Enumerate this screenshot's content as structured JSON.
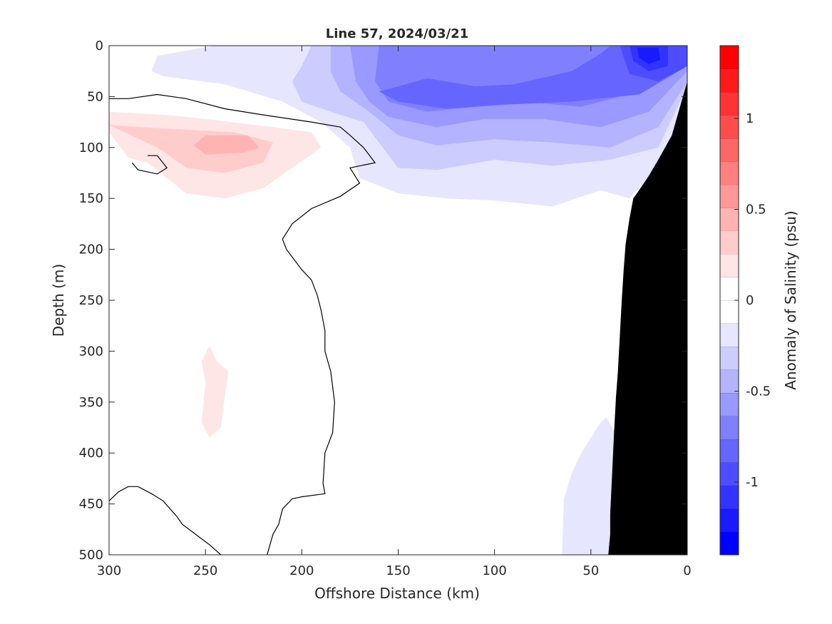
{
  "chart_data": {
    "type": "heatmap",
    "subtype": "filled-contour-section",
    "title": "Line 57, 2024/03/21",
    "xlabel": "Offshore Distance (km)",
    "ylabel": "Depth (m)",
    "colorbar_label": "Anomaly of Salinity (psu)",
    "x_reversed": true,
    "y_reversed": true,
    "xlim": [
      300,
      0
    ],
    "ylim": [
      500,
      0
    ],
    "xticks": [
      300,
      250,
      200,
      150,
      100,
      50,
      0
    ],
    "yticks": [
      0,
      50,
      100,
      150,
      200,
      250,
      300,
      350,
      400,
      450,
      500
    ],
    "colorbar": {
      "min": -1.4,
      "max": 1.4,
      "step": 0.1,
      "ticks": [
        1,
        0.5,
        0,
        -0.5,
        -1
      ],
      "colors": [
        "#0000ff",
        "#1a1aff",
        "#3333ff",
        "#4d4dff",
        "#6666ff",
        "#8080ff",
        "#9999ff",
        "#b3b3ff",
        "#ccccff",
        "#e6e6ff",
        "#ffffff",
        "#ffffff",
        "#ffe6e6",
        "#ffcccc",
        "#ffb3b3",
        "#ff9999",
        "#ff8080",
        "#ff6666",
        "#ff4d4d",
        "#ff3333",
        "#ff1a1a",
        "#ff0000"
      ]
    },
    "contour_levels": [
      0
    ],
    "regions": [
      {
        "name": "surface fresh anomaly -0.1",
        "level": -0.1,
        "color": "#e6e6ff",
        "points": [
          [
            245,
            0
          ],
          [
            0,
            0
          ],
          [
            0,
            40
          ],
          [
            10,
            110
          ],
          [
            30,
            150
          ],
          [
            45,
            142
          ],
          [
            70,
            158
          ],
          [
            100,
            152
          ],
          [
            125,
            150
          ],
          [
            150,
            145
          ],
          [
            170,
            130
          ],
          [
            175,
            100
          ],
          [
            190,
            75
          ],
          [
            210,
            55
          ],
          [
            240,
            38
          ],
          [
            272,
            30
          ],
          [
            278,
            25
          ],
          [
            275,
            10
          ]
        ]
      },
      {
        "name": "fresh anomaly -0.2",
        "level": -0.2,
        "color": "#ccccff",
        "points": [
          [
            195,
            0
          ],
          [
            0,
            0
          ],
          [
            0,
            40
          ],
          [
            15,
            100
          ],
          [
            40,
            112
          ],
          [
            70,
            118
          ],
          [
            100,
            112
          ],
          [
            130,
            122
          ],
          [
            150,
            120
          ],
          [
            160,
            95
          ],
          [
            168,
            75
          ],
          [
            185,
            65
          ],
          [
            200,
            55
          ],
          [
            205,
            35
          ],
          [
            200,
            20
          ]
        ]
      },
      {
        "name": "fresh anomaly -0.3",
        "level": -0.3,
        "color": "#b3b3ff",
        "points": [
          [
            185,
            0
          ],
          [
            0,
            0
          ],
          [
            0,
            35
          ],
          [
            15,
            80
          ],
          [
            40,
            100
          ],
          [
            70,
            95
          ],
          [
            100,
            92
          ],
          [
            130,
            98
          ],
          [
            150,
            88
          ],
          [
            165,
            65
          ],
          [
            180,
            45
          ],
          [
            185,
            25
          ]
        ]
      },
      {
        "name": "fresh anomaly -0.4",
        "level": -0.4,
        "color": "#9999ff",
        "points": [
          [
            175,
            0
          ],
          [
            0,
            0
          ],
          [
            0,
            25
          ],
          [
            20,
            65
          ],
          [
            45,
            80
          ],
          [
            75,
            72
          ],
          [
            105,
            72
          ],
          [
            130,
            80
          ],
          [
            155,
            70
          ],
          [
            165,
            55
          ],
          [
            172,
            35
          ]
        ]
      },
      {
        "name": "fresh anomaly -0.5",
        "level": -0.5,
        "color": "#8080ff",
        "points": [
          [
            160,
            0
          ],
          [
            0,
            0
          ],
          [
            0,
            20
          ],
          [
            25,
            45
          ],
          [
            55,
            60
          ],
          [
            85,
            55
          ],
          [
            110,
            60
          ],
          [
            135,
            65
          ],
          [
            155,
            55
          ],
          [
            162,
            35
          ]
        ]
      },
      {
        "name": "fresh anomaly -0.6",
        "level": -0.6,
        "color": "#6666ff",
        "points": [
          [
            150,
            40
          ],
          [
            135,
            32
          ],
          [
            110,
            40
          ],
          [
            90,
            38
          ],
          [
            60,
            25
          ],
          [
            45,
            8
          ],
          [
            40,
            0
          ],
          [
            0,
            0
          ],
          [
            0,
            20
          ],
          [
            25,
            48
          ],
          [
            60,
            55
          ],
          [
            95,
            58
          ],
          [
            125,
            62
          ],
          [
            150,
            55
          ],
          [
            160,
            45
          ]
        ]
      },
      {
        "name": "fresh core -0.8",
        "level": -0.8,
        "color": "#4d4dff",
        "points": [
          [
            35,
            0
          ],
          [
            0,
            0
          ],
          [
            0,
            20
          ],
          [
            15,
            35
          ],
          [
            30,
            28
          ]
        ]
      },
      {
        "name": "fresh core -1.0",
        "level": -1.0,
        "color": "#3333ff",
        "points": [
          [
            30,
            0
          ],
          [
            10,
            0
          ],
          [
            10,
            20
          ],
          [
            20,
            25
          ],
          [
            28,
            15
          ]
        ]
      },
      {
        "name": "fresh core -1.2",
        "level": -1.2,
        "color": "#1a1aff",
        "points": [
          [
            26,
            2
          ],
          [
            15,
            2
          ],
          [
            14,
            14
          ],
          [
            20,
            18
          ],
          [
            25,
            12
          ]
        ]
      },
      {
        "name": "deep fresh anomaly -0.1",
        "level": -0.1,
        "color": "#e6e6ff",
        "points": [
          [
            65,
            500
          ],
          [
            64,
            445
          ],
          [
            60,
            420
          ],
          [
            55,
            400
          ],
          [
            45,
            370
          ],
          [
            42,
            365
          ],
          [
            38,
            378
          ],
          [
            35,
            400
          ],
          [
            33,
            500
          ]
        ]
      },
      {
        "name": "salty anomaly 0.1",
        "level": 0.1,
        "color": "#ffe6e6",
        "points": [
          [
            300,
            65
          ],
          [
            300,
            85
          ],
          [
            290,
            110
          ],
          [
            280,
            115
          ],
          [
            260,
            145
          ],
          [
            240,
            150
          ],
          [
            220,
            140
          ],
          [
            205,
            120
          ],
          [
            190,
            100
          ],
          [
            195,
            85
          ],
          [
            215,
            80
          ],
          [
            250,
            72
          ],
          [
            270,
            68
          ]
        ]
      },
      {
        "name": "salty anomaly 0.2",
        "level": 0.2,
        "color": "#ffcccc",
        "points": [
          [
            300,
            78
          ],
          [
            275,
            100
          ],
          [
            260,
            120
          ],
          [
            240,
            125
          ],
          [
            220,
            115
          ],
          [
            215,
            95
          ],
          [
            235,
            85
          ],
          [
            265,
            82
          ]
        ]
      },
      {
        "name": "salty core 0.3",
        "level": 0.3,
        "color": "#ffb3b3",
        "points": [
          [
            250,
            88
          ],
          [
            228,
            88
          ],
          [
            222,
            100
          ],
          [
            230,
            105
          ],
          [
            250,
            107
          ],
          [
            256,
            98
          ]
        ]
      },
      {
        "name": "deep salty anomaly 0.1",
        "level": 0.1,
        "color": "#ffe6e6",
        "points": [
          [
            248,
            295
          ],
          [
            244,
            310
          ],
          [
            238,
            320
          ],
          [
            240,
            345
          ],
          [
            242,
            375
          ],
          [
            248,
            385
          ],
          [
            252,
            370
          ],
          [
            250,
            330
          ],
          [
            252,
            310
          ]
        ]
      }
    ],
    "zero_contours": [
      [
        [
          300,
          52
        ],
        [
          290,
          52
        ],
        [
          275,
          48
        ],
        [
          260,
          52
        ],
        [
          240,
          62
        ],
        [
          220,
          68
        ],
        [
          195,
          75
        ],
        [
          180,
          80
        ],
        [
          175,
          88
        ],
        [
          168,
          100
        ],
        [
          162,
          115
        ],
        [
          175,
          120
        ],
        [
          170,
          135
        ],
        [
          180,
          148
        ],
        [
          195,
          160
        ],
        [
          205,
          175
        ],
        [
          210,
          190
        ],
        [
          208,
          200
        ],
        [
          200,
          220
        ],
        [
          195,
          230
        ],
        [
          192,
          245
        ],
        [
          190,
          260
        ],
        [
          188,
          280
        ],
        [
          188,
          300
        ],
        [
          185,
          320
        ],
        [
          183,
          350
        ],
        [
          184,
          380
        ],
        [
          188,
          400
        ],
        [
          189,
          430
        ],
        [
          188,
          440
        ],
        [
          200,
          443
        ],
        [
          205,
          445
        ],
        [
          210,
          455
        ],
        [
          212,
          470
        ],
        [
          215,
          480
        ],
        [
          218,
          500
        ]
      ],
      [
        [
          280,
          108
        ],
        [
          275,
          108
        ],
        [
          270,
          120
        ],
        [
          275,
          126
        ],
        [
          285,
          122
        ],
        [
          288,
          115
        ]
      ],
      [
        [
          300,
          447
        ],
        [
          295,
          438
        ],
        [
          290,
          433
        ],
        [
          285,
          433
        ],
        [
          278,
          440
        ],
        [
          272,
          447
        ],
        [
          265,
          462
        ],
        [
          262,
          470
        ],
        [
          255,
          480
        ],
        [
          248,
          490
        ],
        [
          242,
          500
        ]
      ]
    ],
    "bathymetry": [
      [
        0,
        35
      ],
      [
        8,
        88
      ],
      [
        15,
        112
      ],
      [
        20,
        128
      ],
      [
        25,
        142
      ],
      [
        28,
        150
      ],
      [
        30,
        170
      ],
      [
        32,
        195
      ],
      [
        33,
        220
      ],
      [
        34,
        250
      ],
      [
        35,
        285
      ],
      [
        36,
        320
      ],
      [
        37,
        345
      ],
      [
        38,
        380
      ],
      [
        39,
        420
      ],
      [
        40,
        460
      ],
      [
        40,
        480
      ],
      [
        41,
        500
      ],
      [
        0,
        500
      ]
    ]
  }
}
